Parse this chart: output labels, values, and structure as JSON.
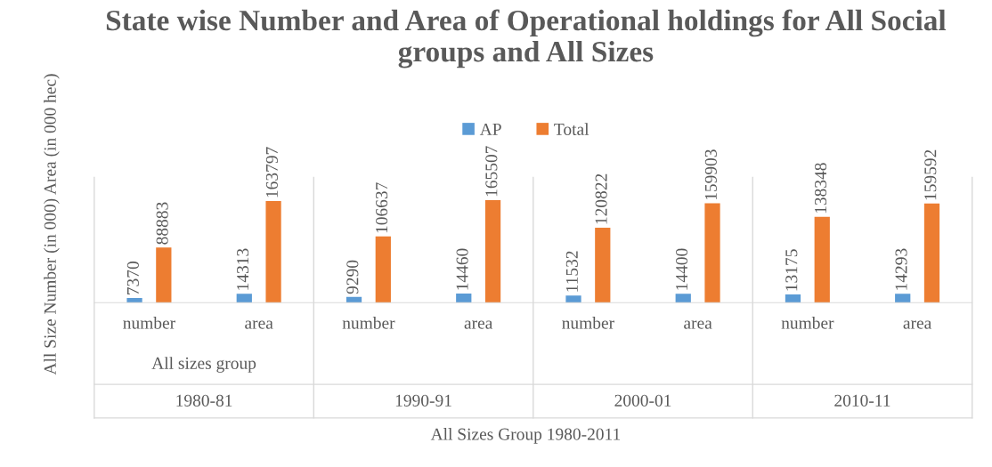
{
  "chart_data": {
    "type": "bar",
    "title": "State wise Number and Area of Operational holdings for All Social groups and All Sizes",
    "ylabel": "All Size Number (in 000) Area (in 000 hec)",
    "categories": [
      "number",
      "area",
      "number",
      "area",
      "number",
      "area",
      "number",
      "area"
    ],
    "annotations": [
      "All sizes group",
      "1980-81",
      "1990-91",
      "2000-01",
      "2010-11",
      "All Sizes Group 1980-2011"
    ],
    "series": [
      {
        "name": "AP",
        "color": "#5b9bd5",
        "values": [
          7370,
          14313,
          9290,
          14460,
          11532,
          14400,
          13175,
          14293
        ]
      },
      {
        "name": "Total",
        "color": "#ed7d31",
        "values": [
          88883,
          163797,
          106637,
          165507,
          120822,
          159903,
          138348,
          159592
        ]
      }
    ],
    "data_labels": true,
    "legend": "top"
  }
}
